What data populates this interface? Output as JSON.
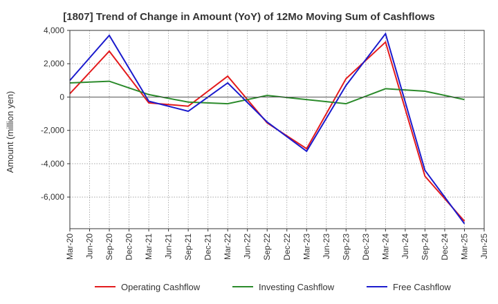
{
  "chart_data": {
    "type": "line",
    "title": "[1807]  Trend of Change in Amount (YoY) of 12Mo Moving Sum of Cashflows",
    "xlabel": "",
    "ylabel": "Amount (million yen)",
    "ylim": [
      -7900,
      4000
    ],
    "yticks": [
      4000,
      2000,
      0,
      -2000,
      -4000,
      -6000
    ],
    "ytick_labels": [
      "4,000",
      "2,000",
      "0",
      "-2,000",
      "-4,000",
      "-6,000"
    ],
    "categories": [
      "Mar-20",
      "Jun-20",
      "Sep-20",
      "Dec-20",
      "Mar-21",
      "Jun-21",
      "Sep-21",
      "Dec-21",
      "Mar-22",
      "Jun-22",
      "Sep-22",
      "Dec-22",
      "Mar-23",
      "Jun-23",
      "Sep-23",
      "Dec-23",
      "Mar-24",
      "Jun-24",
      "Sep-24",
      "Dec-24",
      "Mar-25",
      "Jun-25"
    ],
    "grid": true,
    "legend_position": "bottom",
    "series": [
      {
        "name": "Operating Cashflow",
        "color": "#e31a1c",
        "values": [
          200,
          null,
          2750,
          null,
          -350,
          null,
          -550,
          null,
          1250,
          null,
          -1550,
          null,
          -3100,
          null,
          1100,
          null,
          3300,
          null,
          -4750,
          null,
          -7450,
          null
        ]
      },
      {
        "name": "Investing Cashflow",
        "color": "#2a8a2a",
        "values": [
          850,
          null,
          950,
          null,
          150,
          null,
          -300,
          null,
          -400,
          null,
          100,
          null,
          -150,
          null,
          -400,
          null,
          500,
          null,
          350,
          null,
          -150,
          null
        ]
      },
      {
        "name": "Free Cashflow",
        "color": "#1a1acd",
        "values": [
          1000,
          null,
          3700,
          null,
          -250,
          null,
          -850,
          null,
          850,
          null,
          -1500,
          null,
          -3250,
          null,
          700,
          null,
          3800,
          null,
          -4400,
          null,
          -7600,
          null
        ]
      }
    ]
  }
}
